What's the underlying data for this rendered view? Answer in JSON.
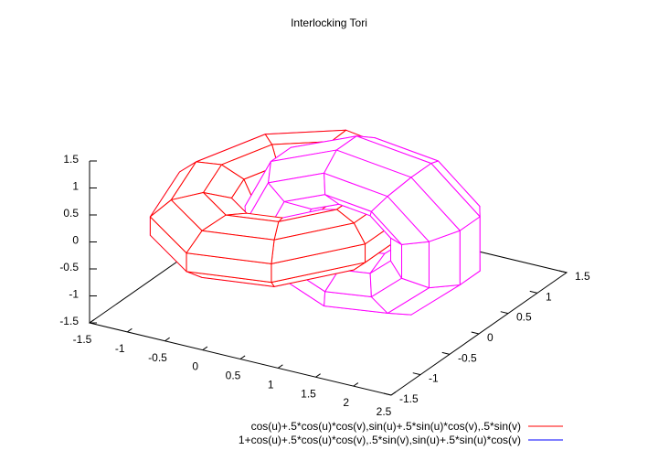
{
  "chart_data": {
    "type": "surface",
    "title": "Interlocking Tori",
    "parametric": true,
    "hidden3d": true,
    "xlim": [
      -1.5,
      2.5
    ],
    "ylim": [
      -1.5,
      1.5
    ],
    "zlim": [
      -1.5,
      1.5
    ],
    "xticks": [
      "-1.5",
      "-1",
      "-0.5",
      "0",
      "0.5",
      "1",
      "1.5",
      "2",
      "2.5"
    ],
    "yticks": [
      "-1.5",
      "-1",
      "-0.5",
      "0",
      "0.5",
      "1",
      "1.5"
    ],
    "zticks": [
      "-1.5",
      "-1",
      "-0.5",
      "0",
      "0.5",
      "1",
      "1.5"
    ],
    "legend_position": "bottom-right",
    "series": [
      {
        "name": "cos(u)+.5*cos(u)*cos(v),sin(u)+.5*sin(u)*cos(v),.5*sin(v)",
        "color": "#ff0000",
        "back_color": "#ff00ff"
      },
      {
        "name": "1+cos(u)+.5*cos(u)*cos(v),.5*sin(v),sin(u)+.5*sin(u)*cos(v)",
        "color": "#0000ff",
        "surface_color": "#ff00ff"
      }
    ]
  }
}
